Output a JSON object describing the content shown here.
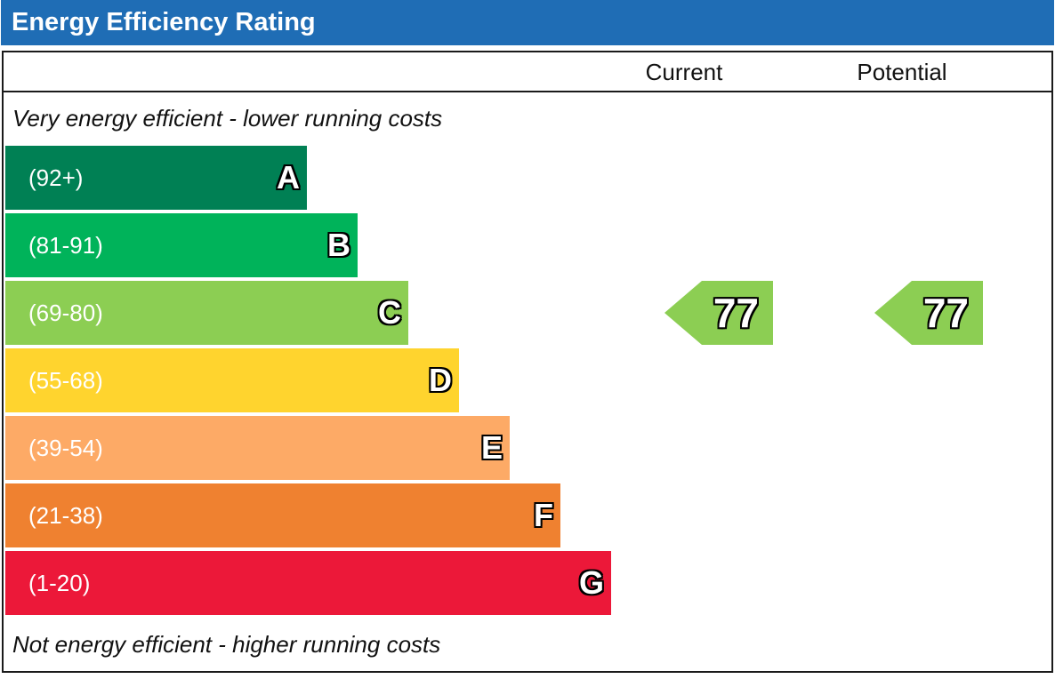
{
  "title": "Energy Efficiency Rating",
  "headers": {
    "current": "Current",
    "potential": "Potential"
  },
  "notes": {
    "top": "Very energy efficient - lower running costs",
    "bottom": "Not energy efficient - higher running costs"
  },
  "chart_data": {
    "type": "bar",
    "title": "Energy Efficiency Rating",
    "bands": [
      {
        "letter": "A",
        "range": "(92+)",
        "color": "#008054"
      },
      {
        "letter": "B",
        "range": "(81-91)",
        "color": "#00b35a"
      },
      {
        "letter": "C",
        "range": "(69-80)",
        "color": "#8cce53"
      },
      {
        "letter": "D",
        "range": "(55-68)",
        "color": "#ffd42e"
      },
      {
        "letter": "E",
        "range": "(39-54)",
        "color": "#fdaa66"
      },
      {
        "letter": "F",
        "range": "(21-38)",
        "color": "#ef8130"
      },
      {
        "letter": "G",
        "range": "(1-20)",
        "color": "#ec1839"
      }
    ],
    "current": {
      "value": "77",
      "band": "C",
      "color": "#8cce53"
    },
    "potential": {
      "value": "77",
      "band": "C",
      "color": "#8cce53"
    }
  }
}
